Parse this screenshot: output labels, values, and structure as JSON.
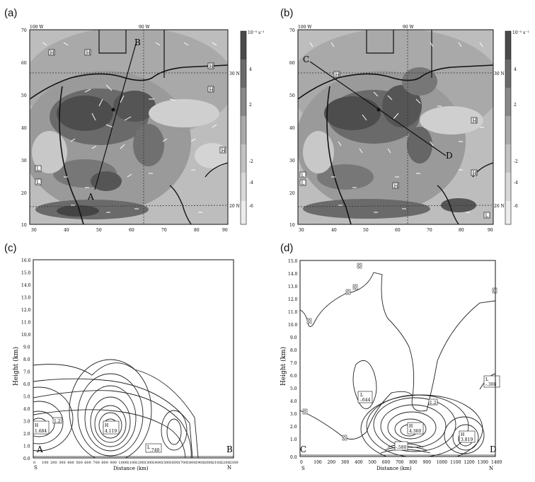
{
  "panels": {
    "a": {
      "label": "(a)",
      "top_lon_labels": [
        "100 W",
        "90 W"
      ],
      "lat_labels": [
        "30 N",
        "20 N"
      ],
      "x_ticks": [
        "30",
        "40",
        "50",
        "60",
        "70",
        "80",
        "90"
      ],
      "y_ticks": [
        "70",
        "60",
        "50",
        "40",
        "30",
        "20",
        "10"
      ],
      "section_end_start": "A",
      "section_end_end": "B",
      "colorbar_top": "10⁻⁵ s⁻¹",
      "colorbar_ticks": [
        "4",
        "2",
        "",
        "-2",
        "-4",
        "",
        "-6"
      ],
      "boxed_labels": [
        "H",
        "H",
        "H",
        "H",
        "H",
        "L",
        "L"
      ]
    },
    "b": {
      "label": "(b)",
      "top_lon_labels": [
        "100 W",
        "90 W"
      ],
      "lat_labels": [
        "30 N",
        "20 N"
      ],
      "x_ticks": [
        "30",
        "40",
        "50",
        "60",
        "70",
        "80",
        "90"
      ],
      "y_ticks": [
        "70",
        "60",
        "50",
        "40",
        "30",
        "20",
        "10"
      ],
      "section_end_start": "C",
      "section_end_end": "D",
      "colorbar_top": "10⁻⁵ s⁻¹",
      "colorbar_ticks": [
        "4",
        "2",
        "",
        "-2",
        "-4",
        "",
        "-6"
      ],
      "boxed_labels": [
        "H",
        "H",
        "L",
        "H",
        "L",
        "H",
        "L"
      ]
    },
    "c": {
      "label": "(c)",
      "y_axis_title": "Height (km)",
      "x_axis_title": "Distance (km)",
      "y_ticks": [
        "16.0",
        "15.0",
        "14.0",
        "13.0",
        "12.0",
        "11.0",
        "10.0",
        "9.0",
        "8.0",
        "7.0",
        "6.0",
        "5.0",
        "4.0",
        "3.0",
        "2.0",
        "1.0",
        "0.0"
      ],
      "x_ticks": [
        "0",
        "100",
        "200",
        "300",
        "400",
        "500",
        "600",
        "700",
        "800",
        "900",
        "1000",
        "1100",
        "1200",
        "1300",
        "1400",
        "1500",
        "1600",
        "1700",
        "1800",
        "1900",
        "2000",
        "2100",
        "2200",
        "2300"
      ],
      "corner_left": "S",
      "corner_right": "N",
      "section_start": "A",
      "section_end": "B",
      "labels": {
        "h1_letter": "H",
        "h1_value": "1.684",
        "c1_value": "1.2",
        "h2_letter": "H",
        "h2_value": "4.119",
        "l1_letter": "L",
        "l1_value": ".740"
      }
    },
    "d": {
      "label": "(d)",
      "y_axis_title": "Height (km)",
      "x_axis_title": "Distance (km)",
      "y_ticks": [
        "15.0",
        "14.0",
        "13.0",
        "12.0",
        "11.0",
        "10.0",
        "9.0",
        "8.0",
        "7.0",
        "6.0",
        "5.0",
        "4.0",
        "3.0",
        "2.0",
        "1.0",
        "0.0"
      ],
      "x_ticks": [
        "0",
        "100",
        "200",
        "300",
        "400",
        "500",
        "600",
        "700",
        "800",
        "900",
        "1000",
        "1100",
        "1200",
        "1300",
        "1400"
      ],
      "corner_left": "S",
      "corner_right": "N",
      "section_start": "C",
      "section_end": "D",
      "labels": {
        "l_left_letter": "L",
        "l_left_value": "-.644",
        "c_mid_value": "1.2",
        "h_center_letter": "H",
        "h_center_value": "4.360",
        "l_small_value": "-.580",
        "h_right_letter": "H",
        "h_right_value": "3.819",
        "l_right_letter": "L",
        "l_right_value": "-.308",
        "zero_labels": [
          "0",
          "0",
          "0",
          "0",
          "0",
          "0",
          "0"
        ]
      }
    }
  }
}
